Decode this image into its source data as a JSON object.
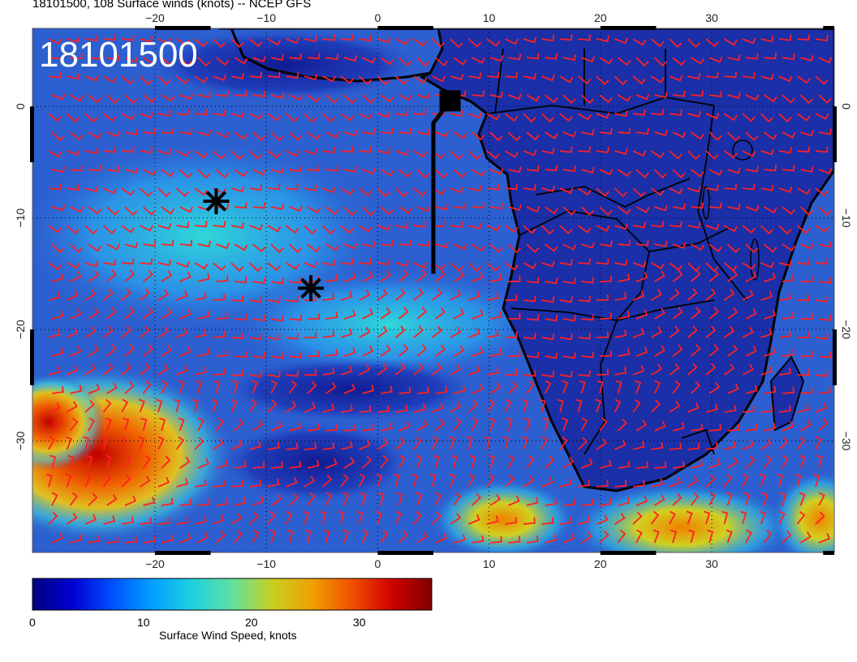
{
  "title": "18101500, 108 Surface winds (knots) -- NCEP GFS",
  "stamp": "18101500",
  "axes": {
    "x_ticks_top": [
      "−20",
      "−10",
      "0",
      "10",
      "20",
      "30"
    ],
    "x_ticks_bottom": [
      "−20",
      "−10",
      "0",
      "10",
      "20",
      "30"
    ],
    "y_ticks_left": [
      "0",
      "−10",
      "−20",
      "−30"
    ],
    "y_ticks_right": [
      "0",
      "−10",
      "−20",
      "−30"
    ],
    "lon_range": [
      -31,
      41
    ],
    "lat_range": [
      -40,
      7
    ],
    "grid": true
  },
  "colorbar": {
    "label": "Surface Wind Speed, knots",
    "ticks": [
      "0",
      "10",
      "20",
      "30"
    ],
    "tick_values": [
      0,
      10,
      20,
      30
    ],
    "range": [
      0,
      37
    ],
    "colors": [
      "#000080",
      "#0000d0",
      "#0050ff",
      "#00a0ff",
      "#20d0e0",
      "#60e0a0",
      "#c8d020",
      "#f0a000",
      "#f05000",
      "#d00000",
      "#800000"
    ]
  },
  "markers": {
    "stars": [
      {
        "lon": -14.5,
        "lat": -8.5
      },
      {
        "lon": -6,
        "lat": -16.3
      }
    ],
    "track": [
      {
        "lon": 5,
        "lat": -15
      },
      {
        "lon": 5,
        "lat": -1.5
      },
      {
        "lon": 6.5,
        "lat": 0.5
      }
    ],
    "square": {
      "lon": 6.5,
      "lat": 0.5
    }
  },
  "colors": {
    "ocean": "#2c5fd0",
    "land": "#1a2fa8",
    "barbs": "#ff2020",
    "coast": "#000000"
  }
}
